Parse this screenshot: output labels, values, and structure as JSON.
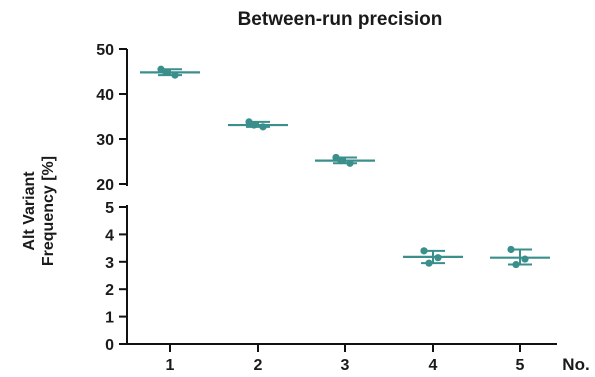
{
  "chart_data": {
    "type": "scatter",
    "title": "Between-run precision",
    "ylabel_line1": "Alt Variant",
    "ylabel_line2": "Frequency [%]",
    "xlabel": "No.",
    "categories": [
      "1",
      "2",
      "3",
      "4",
      "5"
    ],
    "y_axis_broken": true,
    "y_segments": [
      {
        "ylim": [
          20,
          50
        ],
        "ticks": [
          "50",
          "40",
          "30",
          "20"
        ]
      },
      {
        "ylim": [
          0,
          5
        ],
        "ticks": [
          "5",
          "4",
          "3",
          "2",
          "1",
          "0"
        ]
      }
    ],
    "color": "#3a8f8c",
    "samples": [
      {
        "x": "1",
        "points": [
          45.5,
          44.2,
          44.8
        ],
        "mean": 44.8,
        "error_low": 44.2,
        "error_high": 45.5
      },
      {
        "x": "2",
        "points": [
          33.8,
          32.7,
          33.1
        ],
        "mean": 33.1,
        "error_low": 32.7,
        "error_high": 33.8
      },
      {
        "x": "3",
        "points": [
          25.9,
          24.6,
          25.2
        ],
        "mean": 25.2,
        "error_low": 24.6,
        "error_high": 25.9
      },
      {
        "x": "4",
        "points": [
          3.4,
          3.15,
          2.95
        ],
        "mean": 3.18,
        "error_low": 2.95,
        "error_high": 3.4
      },
      {
        "x": "5",
        "points": [
          3.45,
          3.1,
          2.9
        ],
        "mean": 3.15,
        "error_low": 2.9,
        "error_high": 3.45
      }
    ]
  }
}
